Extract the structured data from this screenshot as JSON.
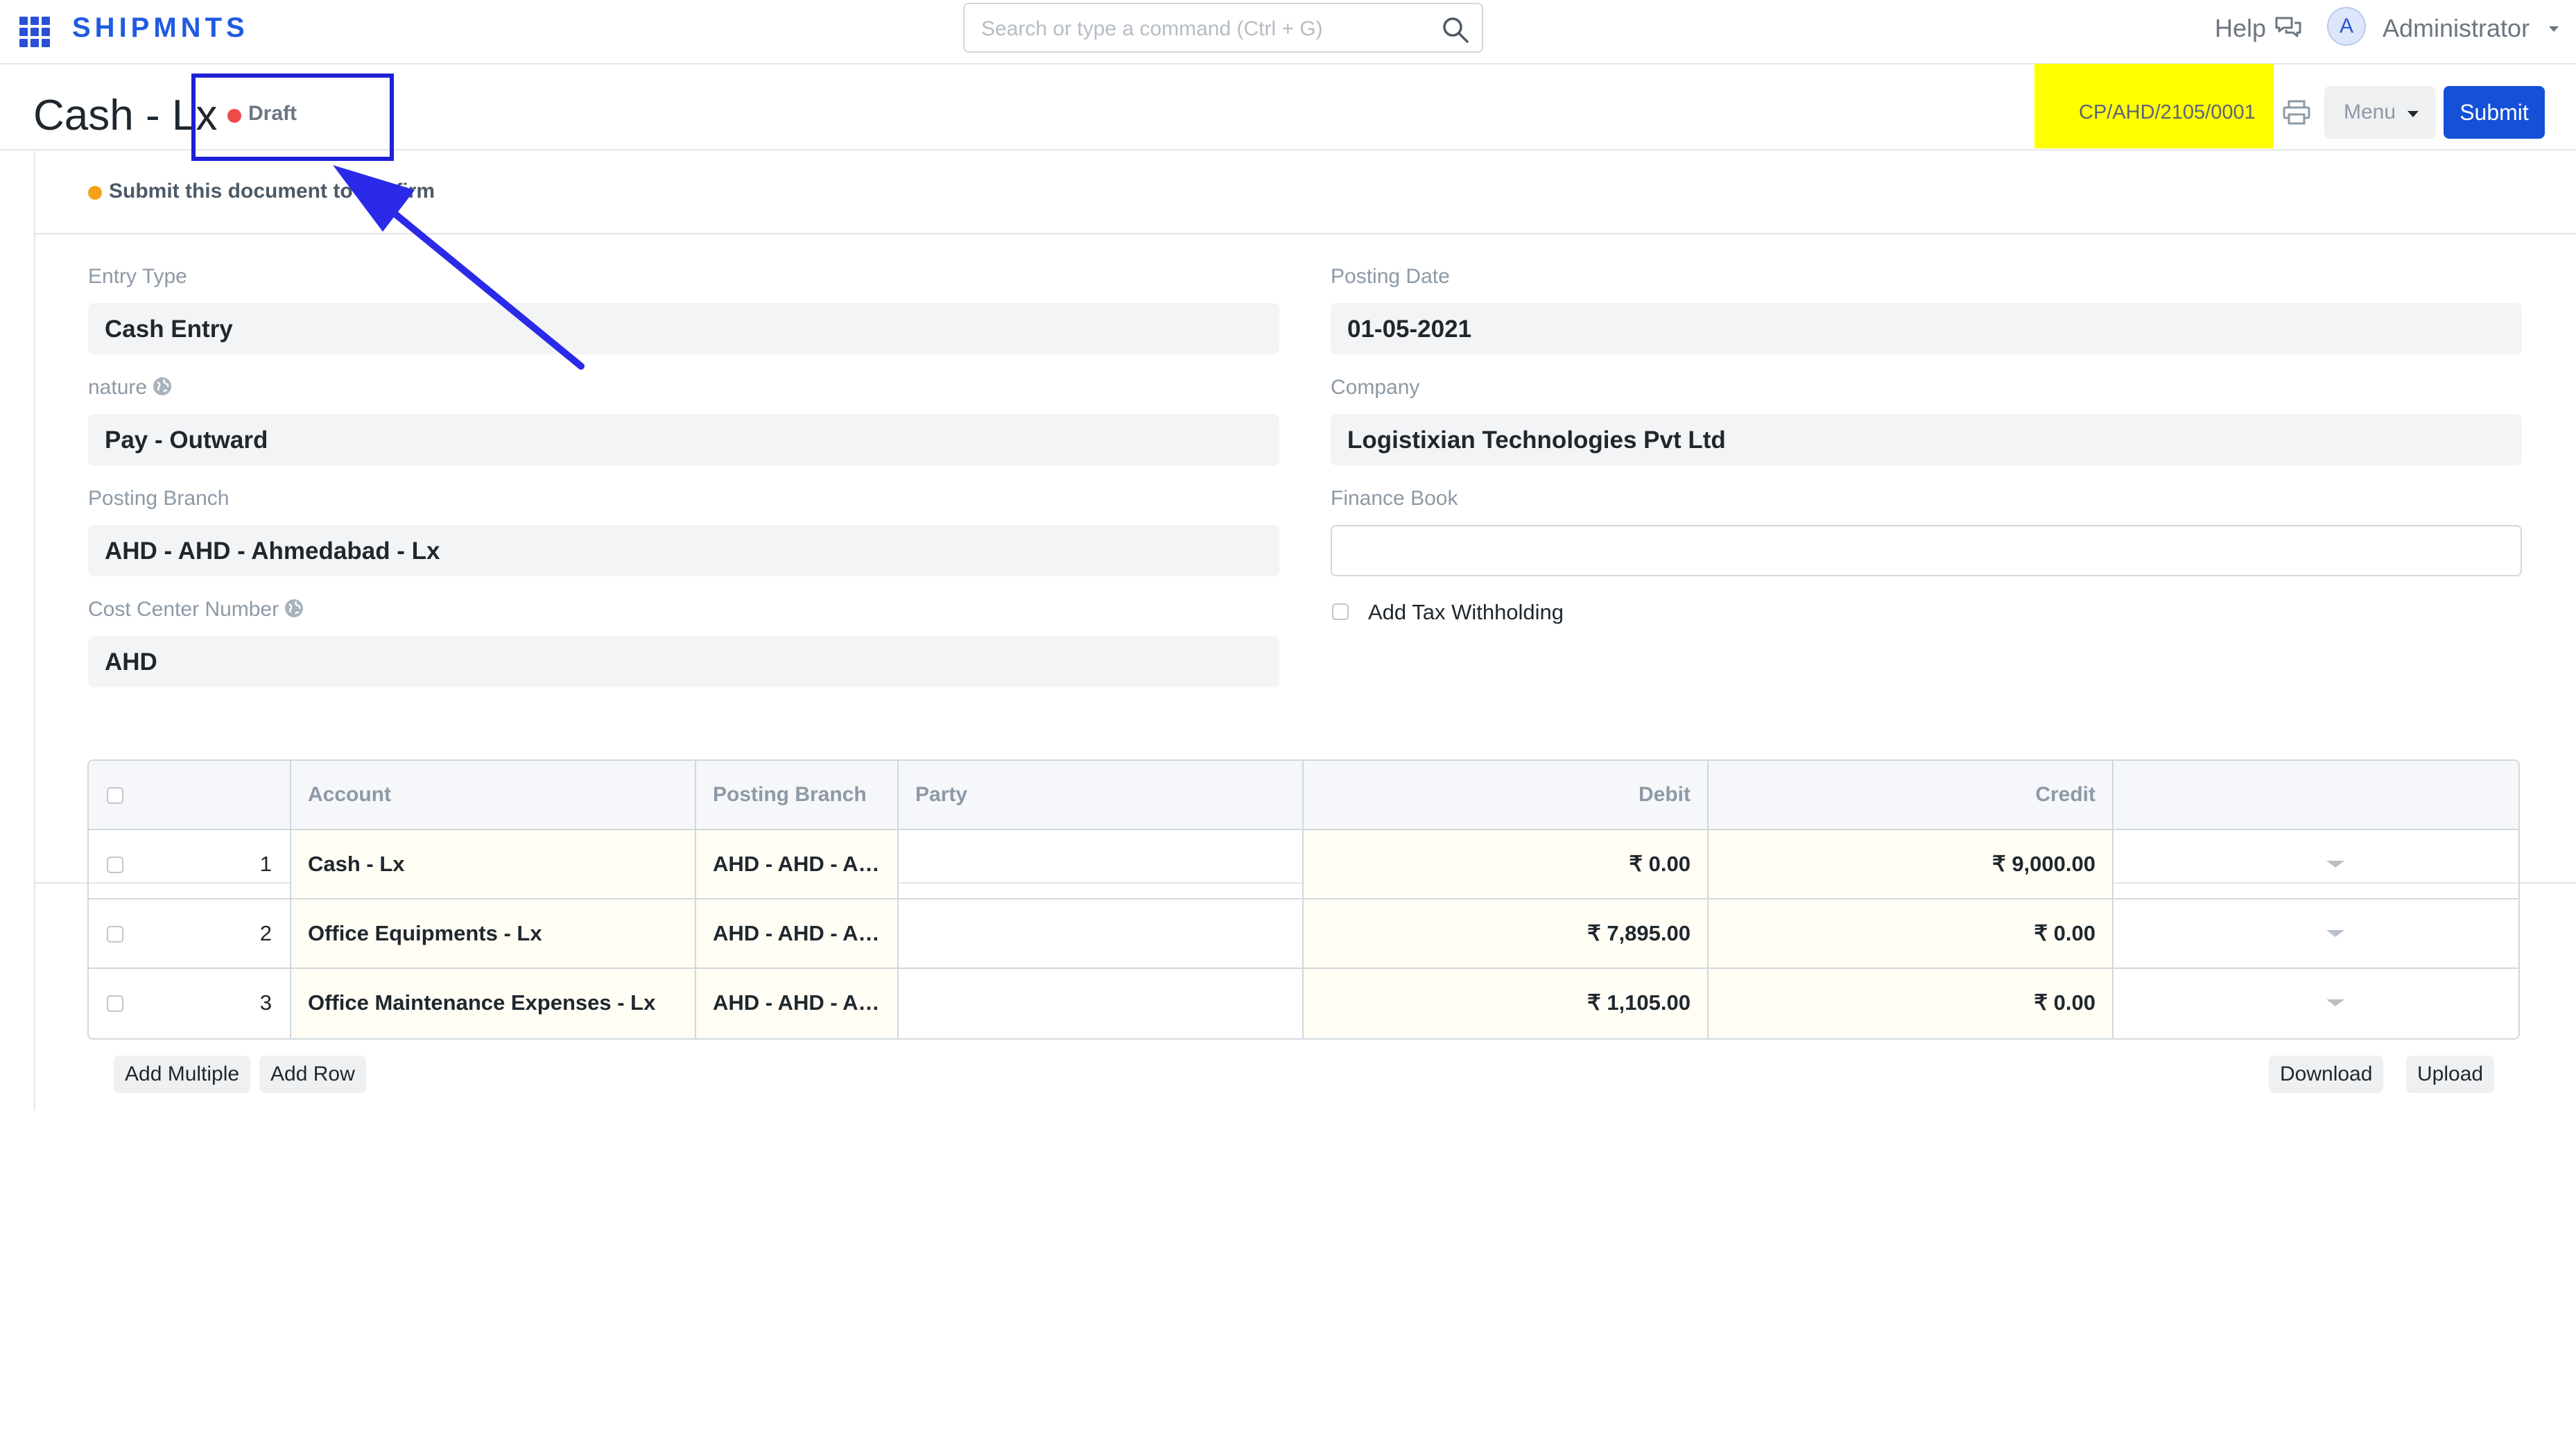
{
  "navbar": {
    "brand": "SHIPMNTS",
    "search_placeholder": "Search or type a command (Ctrl + G)",
    "help_label": "Help",
    "avatar_initial": "A",
    "user_name": "Administrator",
    "icons": [
      "apps-grid-icon",
      "search-icon",
      "chat-icon",
      "caret-down-icon"
    ]
  },
  "page": {
    "title": "Cash - Lx",
    "status": "Draft",
    "status_color": "#ef4a4a",
    "doc_name": "CP/AHD/2105/0001",
    "menu_label": "Menu",
    "submit_label": "Submit",
    "accent_color": "#1450d8"
  },
  "indicator": {
    "text": "Submit this document to confirm",
    "color": "#f7a21b"
  },
  "form": {
    "left": [
      {
        "label": "Entry Type",
        "value": "Cash Entry",
        "globe": false
      },
      {
        "label": "nature",
        "value": "Pay - Outward",
        "globe": true
      },
      {
        "label": "Posting Branch",
        "value": "AHD - AHD - Ahmedabad - Lx",
        "globe": false
      },
      {
        "label": "Cost Center Number",
        "value": "AHD",
        "globe": true
      }
    ],
    "right": [
      {
        "label": "Posting Date",
        "value": "01-05-2021"
      },
      {
        "label": "Company",
        "value": "Logistixian Technologies Pvt Ltd"
      },
      {
        "label": "Finance Book",
        "value": ""
      }
    ],
    "tax_withholding_label": "Add Tax Withholding"
  },
  "accounts_table": {
    "columns": [
      "",
      "Account",
      "Posting Branch",
      "Party",
      "Debit",
      "Credit",
      ""
    ],
    "rows": [
      {
        "idx": "1",
        "account": "Cash - Lx",
        "branch": "AHD - AHD - Ahmedabad - Lx",
        "party": "",
        "debit": "₹ 0.00",
        "credit": "₹ 9,000.00"
      },
      {
        "idx": "2",
        "account": "Office Equipments - Lx",
        "branch": "AHD - AHD - Ahmedabad - Lx",
        "party": "",
        "debit": "₹ 7,895.00",
        "credit": "₹ 0.00"
      },
      {
        "idx": "3",
        "account": "Office Maintenance Expenses - Lx",
        "branch": "AHD - AHD - Ahmedabad - Lx",
        "party": "",
        "debit": "₹ 1,105.00",
        "credit": "₹ 0.00"
      }
    ],
    "buttons": {
      "add_multiple": "Add Multiple",
      "add_row": "Add Row",
      "download": "Download",
      "upload": "Upload"
    }
  },
  "annotations": {
    "highlight_color": "#ffff00",
    "box_color": "#1f1fd6"
  }
}
